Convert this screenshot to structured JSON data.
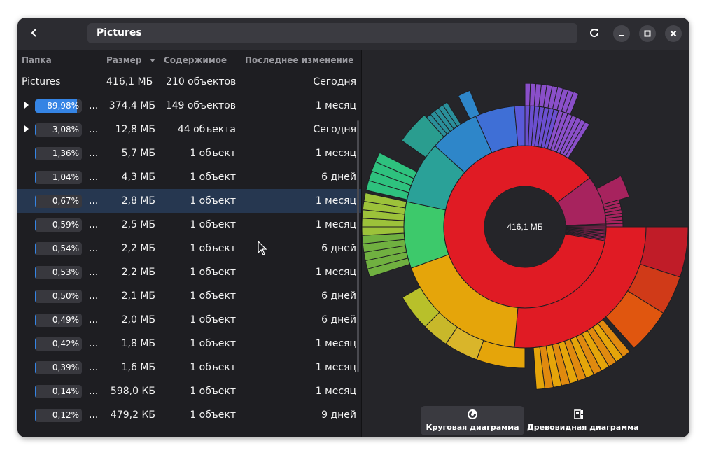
{
  "header": {
    "path": "Pictures"
  },
  "columns": {
    "folder": "Папка",
    "size": "Размер",
    "contents": "Содержимое",
    "modified": "Последнее изменение"
  },
  "root_row": {
    "name": "Pictures",
    "size": "416,1 МБ",
    "contents": "210 объектов",
    "modified": "Сегодня"
  },
  "rows": [
    {
      "percent": "89,98%",
      "fraction": 0.8998,
      "name": "...",
      "size": "374,4 МБ",
      "contents": "149 объектов",
      "modified": "1 месяц",
      "expandable": true
    },
    {
      "percent": "3,08%",
      "fraction": 0.0308,
      "name": "...",
      "size": "12,8 МБ",
      "contents": "44 объекта",
      "modified": "Сегодня",
      "expandable": true
    },
    {
      "percent": "1,36%",
      "fraction": 0.0136,
      "name": "...",
      "size": "5,7 МБ",
      "contents": "1 объект",
      "modified": "1 месяц",
      "expandable": false
    },
    {
      "percent": "1,04%",
      "fraction": 0.0104,
      "name": "...",
      "size": "4,3 МБ",
      "contents": "1 объект",
      "modified": "6 дней",
      "expandable": false
    },
    {
      "percent": "0,67%",
      "fraction": 0.0067,
      "name": "...",
      "size": "2,8 МБ",
      "contents": "1 объект",
      "modified": "1 месяц",
      "expandable": false,
      "selected": true
    },
    {
      "percent": "0,59%",
      "fraction": 0.0059,
      "name": "...",
      "size": "2,5 МБ",
      "contents": "1 объект",
      "modified": "1 месяц",
      "expandable": false
    },
    {
      "percent": "0,54%",
      "fraction": 0.0054,
      "name": "...",
      "size": "2,2 МБ",
      "contents": "1 объект",
      "modified": "6 дней",
      "expandable": false
    },
    {
      "percent": "0,53%",
      "fraction": 0.0053,
      "name": "...",
      "size": "2,2 МБ",
      "contents": "1 объект",
      "modified": "1 месяц",
      "expandable": false
    },
    {
      "percent": "0,50%",
      "fraction": 0.005,
      "name": "...",
      "size": "2,1 МБ",
      "contents": "1 объект",
      "modified": "6 дней",
      "expandable": false
    },
    {
      "percent": "0,49%",
      "fraction": 0.0049,
      "name": "...",
      "size": "2,0 МБ",
      "contents": "1 объект",
      "modified": "6 дней",
      "expandable": false
    },
    {
      "percent": "0,42%",
      "fraction": 0.0042,
      "name": "...",
      "size": "1,8 МБ",
      "contents": "1 объект",
      "modified": "1 месяц",
      "expandable": false
    },
    {
      "percent": "0,39%",
      "fraction": 0.0039,
      "name": "...",
      "size": "1,6 МБ",
      "contents": "1 объект",
      "modified": "1 месяц",
      "expandable": false
    },
    {
      "percent": "0,14%",
      "fraction": 0.0014,
      "name": "...",
      "size": "598,0 КБ",
      "contents": "1 объект",
      "modified": "1 месяц",
      "expandable": false
    },
    {
      "percent": "0,12%",
      "fraction": 0.0012,
      "name": "...",
      "size": "479,2 КБ",
      "contents": "1 объект",
      "modified": "9 дней",
      "expandable": false
    }
  ],
  "chart": {
    "center_label": "416,1 МБ"
  },
  "view_switcher": {
    "ring_chart": "Круговая диаграмма",
    "tree_chart": "Древовидная диаграмма"
  },
  "colors": {
    "accent": "#3584e4",
    "selected_row": "#263750",
    "root_ring": "#e01b24"
  },
  "icons": [
    "back-icon",
    "refresh-icon",
    "minimize-icon",
    "maximize-icon",
    "close-icon",
    "sort-descending-icon",
    "expander-icon",
    "ring-chart-icon",
    "tree-chart-icon"
  ]
}
